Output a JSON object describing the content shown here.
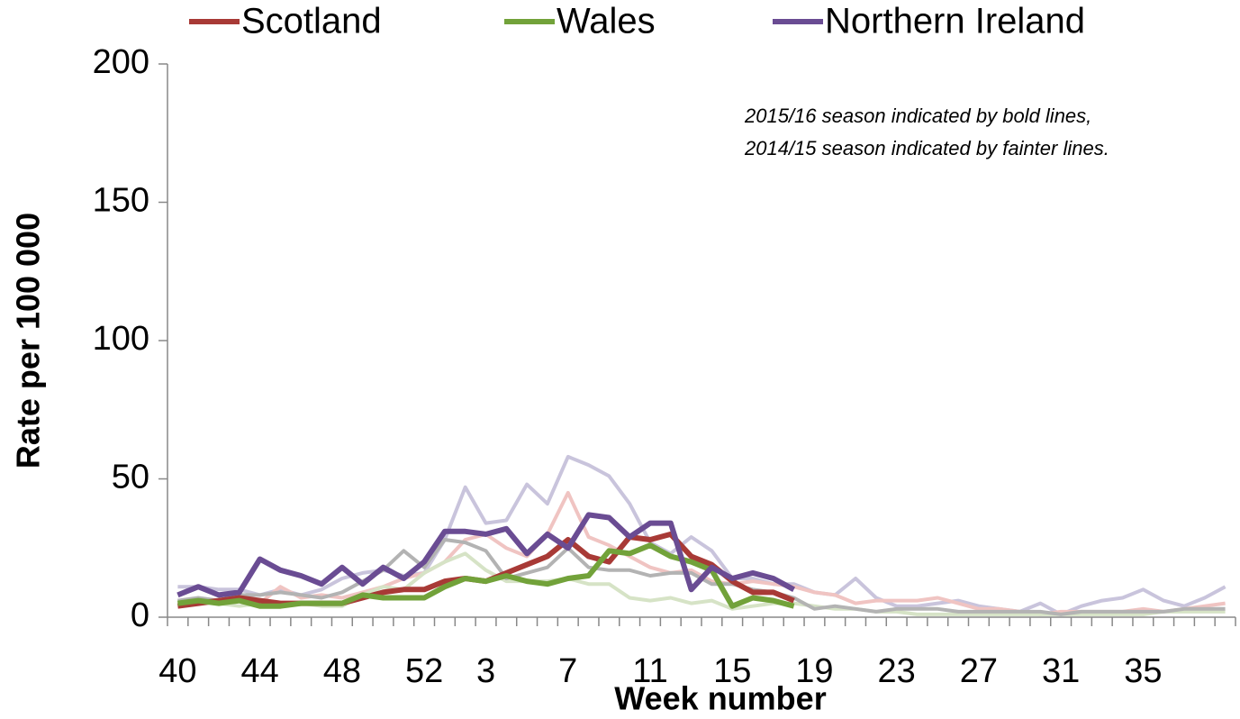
{
  "chart_data": {
    "type": "line",
    "annotation": [
      "2015/16 season indicated by bold lines,",
      "2014/15 season indicated by fainter lines."
    ],
    "x_label": "Week number",
    "y_label": "Rate per 100 000",
    "categories": [
      40,
      null,
      null,
      null,
      44,
      null,
      null,
      null,
      48,
      null,
      null,
      null,
      52,
      null,
      null,
      3,
      null,
      null,
      null,
      7,
      null,
      null,
      null,
      11,
      null,
      null,
      null,
      15,
      null,
      null,
      null,
      19,
      null,
      null,
      null,
      23,
      null,
      null,
      null,
      27,
      null,
      null,
      null,
      31,
      null,
      null,
      null,
      35,
      null,
      null,
      null,
      null
    ],
    "ylim": [
      0,
      200
    ],
    "yticks": [
      0,
      50,
      100,
      150,
      200
    ],
    "series": [
      {
        "color": "#c9c4dc",
        "width": 4,
        "values": [
          11,
          11,
          10,
          10,
          8,
          10,
          8,
          10,
          14,
          16,
          17,
          15,
          16,
          28,
          47,
          34,
          35,
          48,
          41,
          58,
          55,
          51,
          41,
          27,
          23,
          29,
          24,
          14,
          14,
          12,
          12,
          9,
          8,
          14,
          7,
          4,
          4,
          5,
          6,
          4,
          3,
          2,
          5,
          1,
          4,
          6,
          7,
          10,
          6,
          4,
          7,
          11
        ]
      },
      {
        "color": "#f0c4c2",
        "width": 4,
        "values": [
          4,
          5,
          6,
          6,
          5,
          11,
          7,
          8,
          7,
          9,
          11,
          14,
          16,
          20,
          28,
          30,
          25,
          22,
          30,
          45,
          29,
          26,
          22,
          18,
          16,
          17,
          13,
          12,
          13,
          12,
          11,
          9,
          8,
          5,
          6,
          6,
          6,
          7,
          5,
          3,
          3,
          2,
          1,
          2,
          2,
          2,
          2,
          3,
          2,
          3,
          4,
          5
        ]
      },
      {
        "color": "#d6e3c6",
        "width": 4,
        "values": [
          5,
          6,
          5,
          4,
          5,
          5,
          5,
          4,
          4,
          8,
          11,
          10,
          16,
          20,
          23,
          17,
          13,
          13,
          13,
          14,
          12,
          12,
          7,
          6,
          7,
          5,
          6,
          3,
          4,
          5,
          5,
          4,
          3,
          3,
          2,
          2,
          1,
          1,
          1,
          1,
          1,
          1,
          1,
          1,
          1,
          1,
          1,
          1,
          2,
          2,
          2,
          2
        ]
      },
      {
        "color": "#b3b3b3",
        "width": 4,
        "values": [
          6,
          7,
          6,
          8,
          8,
          9,
          8,
          7,
          9,
          13,
          17,
          24,
          18,
          28,
          27,
          24,
          14,
          16,
          18,
          25,
          18,
          17,
          17,
          15,
          16,
          16,
          12,
          12,
          10,
          9,
          7,
          3,
          4,
          3,
          2,
          3,
          3,
          3,
          2,
          2,
          2,
          2,
          2,
          1,
          2,
          2,
          2,
          2,
          2,
          3,
          3,
          3
        ]
      },
      {
        "name": "Scotland",
        "color": "#a83a36",
        "width": 6,
        "values": [
          4,
          5,
          6,
          7,
          6,
          5,
          5,
          5,
          5,
          7,
          9,
          10,
          10,
          13,
          14,
          13,
          16,
          19,
          22,
          28,
          22,
          20,
          29,
          28,
          30,
          22,
          19,
          13,
          9,
          9,
          6,
          null,
          null,
          null,
          null,
          null,
          null,
          null,
          null,
          null,
          null,
          null,
          null,
          null,
          null,
          null,
          null,
          null,
          null,
          null,
          null,
          null
        ]
      },
      {
        "name": "Wales",
        "color": "#72a23a",
        "width": 6,
        "values": [
          5,
          6,
          5,
          6,
          4,
          4,
          5,
          5,
          5,
          8,
          7,
          7,
          7,
          11,
          14,
          13,
          15,
          13,
          12,
          14,
          15,
          24,
          23,
          26,
          22,
          20,
          17,
          4,
          7,
          6,
          4,
          null,
          null,
          null,
          null,
          null,
          null,
          null,
          null,
          null,
          null,
          null,
          null,
          null,
          null,
          null,
          null,
          null,
          null,
          null,
          null,
          null
        ]
      },
      {
        "name": "Northern Ireland",
        "color": "#6a4c93",
        "width": 6,
        "values": [
          8,
          11,
          8,
          9,
          21,
          17,
          15,
          12,
          18,
          12,
          18,
          14,
          20,
          31,
          31,
          30,
          32,
          23,
          30,
          25,
          37,
          36,
          29,
          34,
          34,
          10,
          18,
          14,
          16,
          14,
          10,
          null,
          null,
          null,
          null,
          null,
          null,
          null,
          null,
          null,
          null,
          null,
          null,
          null,
          null,
          null,
          null,
          null,
          null,
          null,
          null,
          null
        ]
      }
    ]
  }
}
